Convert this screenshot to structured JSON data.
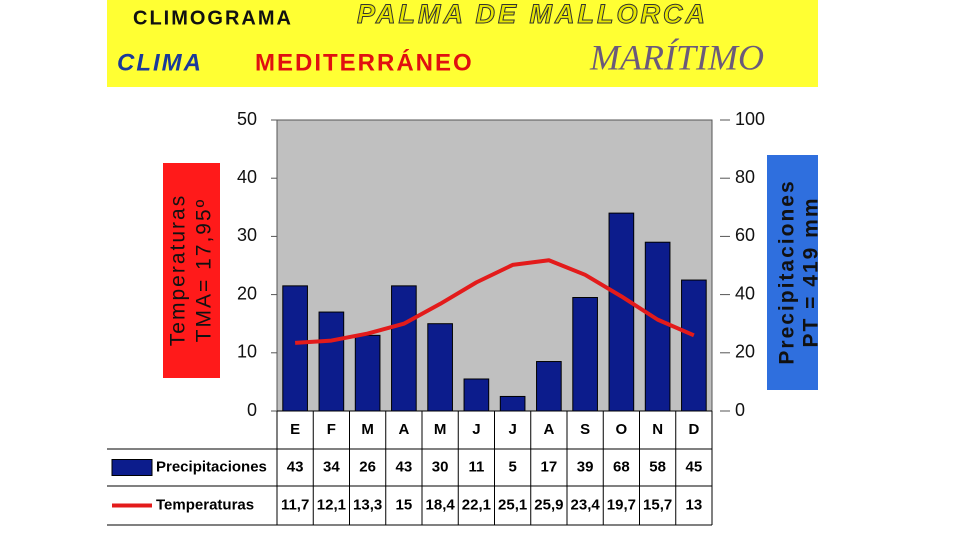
{
  "chart_data": {
    "type": "bar-line",
    "title": [
      "CLIMOGRAMA",
      "PALMA DE MALLORCA"
    ],
    "subtitle": [
      "CLIMA",
      "MEDITERRÁNEO",
      "MARÍTIMO"
    ],
    "ylabel": [
      "Temperaturas",
      "TMA= 17,95º"
    ],
    "y2label": [
      "Precipitaciones",
      "PT = 419 mm"
    ],
    "categories": [
      "E",
      "F",
      "M",
      "A",
      "M",
      "J",
      "J",
      "A",
      "S",
      "O",
      "N",
      "D"
    ],
    "series": [
      {
        "name": "Precipitaciones",
        "type": "bar",
        "axis": "y2",
        "color": "#0c1c8c",
        "values": [
          43,
          34,
          26,
          43,
          30,
          11,
          5,
          17,
          39,
          68,
          58,
          45
        ]
      },
      {
        "name": "Temperaturas",
        "type": "line",
        "color": "#e31b1b",
        "values": [
          11.7,
          12.1,
          13.3,
          15,
          18.4,
          22.1,
          25.1,
          25.9,
          23.4,
          19.7,
          15.7,
          13
        ],
        "value_labels": [
          "11,7",
          "12,1",
          "13,3",
          "15",
          "18,4",
          "22,1",
          "25,1",
          "25,9",
          "23,4",
          "19,7",
          "15,7",
          "13"
        ]
      }
    ],
    "ylim": [
      0,
      50
    ],
    "yticks": [
      0,
      10,
      20,
      30,
      40,
      50
    ],
    "y2lim": [
      0,
      100
    ],
    "y2ticks": [
      0,
      20,
      40,
      60,
      80,
      100
    ],
    "grid": false,
    "plot_background": "#c0c0c0"
  }
}
